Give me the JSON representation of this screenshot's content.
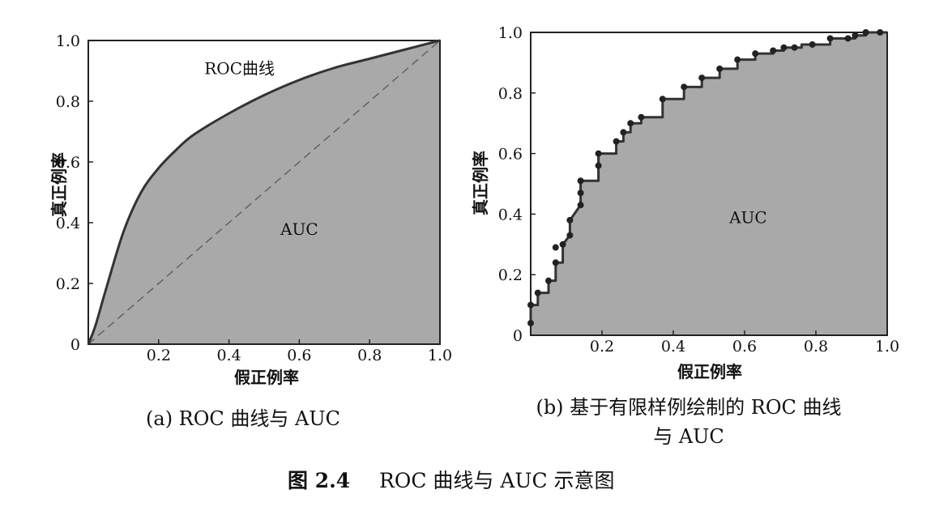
{
  "figure": {
    "caption_num": "图 2.4",
    "caption_text": "ROC 曲线与 AUC 示意图"
  },
  "colors": {
    "auc_fill": "#a9a9a9",
    "curve": "#333333",
    "diagonal": "#666666",
    "frame": "#222222"
  },
  "chart_data": [
    {
      "type": "area",
      "caption": "(a) ROC 曲线与 AUC",
      "curve_label": "ROC曲线",
      "area_label": "AUC",
      "xlabel": "假正例率",
      "ylabel": "真正例率",
      "xlim": [
        0,
        1
      ],
      "ylim": [
        0,
        1
      ],
      "x_ticks": [
        "0.2",
        "0.4",
        "0.6",
        "0.8",
        "1.0"
      ],
      "y_ticks": [
        "0",
        "0.2",
        "0.4",
        "0.6",
        "0.8",
        "1.0"
      ],
      "diagonal": true,
      "series": [
        {
          "x": [
            0,
            0.02,
            0.05,
            0.1,
            0.15,
            0.2,
            0.25,
            0.3,
            0.4,
            0.5,
            0.6,
            0.7,
            0.8,
            0.9,
            1.0
          ],
          "y": [
            0,
            0.06,
            0.18,
            0.37,
            0.5,
            0.58,
            0.64,
            0.69,
            0.76,
            0.82,
            0.87,
            0.91,
            0.94,
            0.97,
            1.0
          ]
        }
      ]
    },
    {
      "type": "area",
      "caption_line1": "(b) 基于有限样例绘制的 ROC 曲线",
      "caption_line2": "与 AUC",
      "area_label": "AUC",
      "xlabel": "假正例率",
      "ylabel": "真正例率",
      "xlim": [
        0,
        1
      ],
      "ylim": [
        0,
        1
      ],
      "x_ticks": [
        "0.2",
        "0.4",
        "0.6",
        "0.8",
        "1.0"
      ],
      "y_ticks": [
        "0",
        "0.2",
        "0.4",
        "0.6",
        "0.8",
        "1.0"
      ],
      "series": [
        {
          "x": [
            0,
            0,
            0.02,
            0.02,
            0.05,
            0.05,
            0.07,
            0.07,
            0.09,
            0.09,
            0.11,
            0.11,
            0.14,
            0.14,
            0.14,
            0.19,
            0.19,
            0.19,
            0.24,
            0.24,
            0.26,
            0.26,
            0.28,
            0.28,
            0.31,
            0.31,
            0.35,
            0.37,
            0.37,
            0.43,
            0.43,
            0.48,
            0.48,
            0.53,
            0.53,
            0.58,
            0.58,
            0.63,
            0.63,
            0.68,
            0.68,
            0.71,
            0.71,
            0.74,
            0.76,
            0.76,
            0.79,
            0.84,
            0.84,
            0.89,
            0.91,
            0.91,
            0.94,
            0.94,
            0.98,
            0.98,
            1.0
          ],
          "y": [
            0.04,
            0.1,
            0.1,
            0.14,
            0.14,
            0.18,
            0.18,
            0.24,
            0.24,
            0.3,
            0.33,
            0.38,
            0.43,
            0.47,
            0.51,
            0.51,
            0.56,
            0.6,
            0.6,
            0.64,
            0.64,
            0.67,
            0.67,
            0.7,
            0.7,
            0.72,
            0.72,
            0.72,
            0.78,
            0.78,
            0.82,
            0.82,
            0.85,
            0.85,
            0.88,
            0.88,
            0.91,
            0.91,
            0.93,
            0.93,
            0.94,
            0.94,
            0.95,
            0.95,
            0.95,
            0.96,
            0.96,
            0.96,
            0.98,
            0.98,
            0.98,
            0.99,
            0.99,
            1.0,
            1.0,
            1.0,
            1.0
          ]
        }
      ],
      "markers": {
        "x": [
          0,
          0,
          0.02,
          0.05,
          0.07,
          0.07,
          0.09,
          0.11,
          0.11,
          0.14,
          0.14,
          0.14,
          0.19,
          0.19,
          0.24,
          0.26,
          0.28,
          0.31,
          0.37,
          0.43,
          0.48,
          0.53,
          0.58,
          0.63,
          0.68,
          0.71,
          0.74,
          0.79,
          0.84,
          0.89,
          0.91,
          0.94,
          0.98
        ],
        "y": [
          0.04,
          0.1,
          0.14,
          0.18,
          0.24,
          0.29,
          0.3,
          0.33,
          0.38,
          0.43,
          0.47,
          0.51,
          0.56,
          0.6,
          0.64,
          0.67,
          0.7,
          0.72,
          0.78,
          0.82,
          0.85,
          0.88,
          0.91,
          0.93,
          0.94,
          0.95,
          0.95,
          0.96,
          0.98,
          0.98,
          0.99,
          1.0,
          1.0
        ]
      }
    }
  ]
}
